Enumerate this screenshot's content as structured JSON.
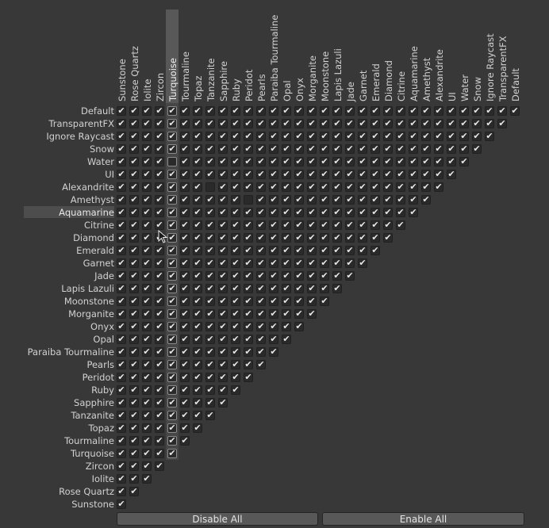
{
  "layers": [
    "Default",
    "TransparentFX",
    "Ignore Raycast",
    "Snow",
    "Water",
    "UI",
    "Alexandrite",
    "Amethyst",
    "Aquamarine",
    "Citrine",
    "Diamond",
    "Emerald",
    "Garnet",
    "Jade",
    "Lapis Lazuli",
    "Moonstone",
    "Morganite",
    "Onyx",
    "Opal",
    "Paraiba Tourmaline",
    "Pearls",
    "Peridot",
    "Ruby",
    "Sapphire",
    "Tanzanite",
    "Topaz",
    "Tourmaline",
    "Turquoise",
    "Zircon",
    "Iolite",
    "Rose Quartz",
    "Sunstone"
  ],
  "highlighted_row": "Aquamarine",
  "highlighted_column": "Turquoise",
  "unchecked_cells": [
    [
      "Water",
      "Turquoise"
    ],
    [
      "Alexandrite",
      "Tanzanite"
    ],
    [
      "Amethyst",
      "Peridot"
    ]
  ],
  "check_glyph": "check-icon",
  "buttons": {
    "disable_all": "Disable All",
    "enable_all": "Enable All"
  }
}
